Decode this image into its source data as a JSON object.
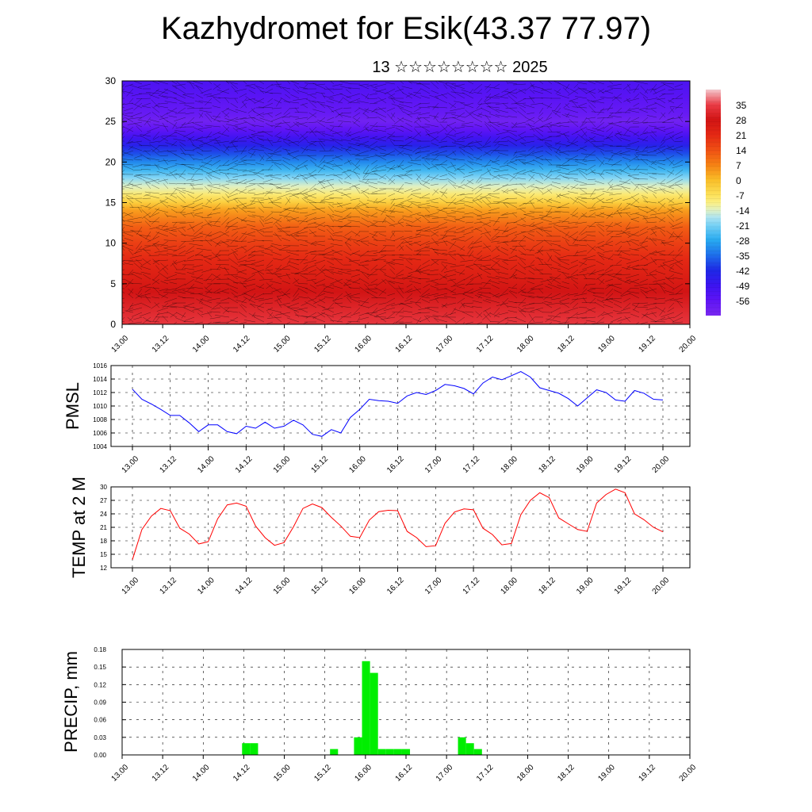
{
  "title": "Kazhydromet for Esik(43.37 77.97)",
  "subtitle": "13 ☆☆☆☆☆☆☆☆ 2025",
  "x_ticks": [
    "13.00",
    "13.12",
    "14.00",
    "14.12",
    "15.00",
    "15.12",
    "16.00",
    "16.12",
    "17.00",
    "17.12",
    "18.00",
    "18.12",
    "19.00",
    "19.12",
    "20.00"
  ],
  "colors": {
    "pmsl_line": "#0000ff",
    "temp_line": "#ff0000",
    "precip_bar": "#00ee00",
    "vector": "#000000"
  },
  "chart_data": [
    {
      "id": "cross-section",
      "type": "heatmap",
      "ylim": [
        0,
        30
      ],
      "y_ticks": [
        0,
        5,
        10,
        15,
        20,
        25,
        30
      ],
      "colorbar_labels": [
        "35",
        "28",
        "21",
        "14",
        "7",
        "0",
        "-7",
        "-14",
        "-21",
        "-28",
        "-35",
        "-42",
        "-49",
        "-56"
      ],
      "colorbar_range": [
        -63,
        42
      ],
      "profile_height": [
        0,
        2,
        4,
        6,
        8,
        10,
        12,
        14,
        15,
        16,
        17,
        18,
        19,
        20,
        21,
        22,
        23,
        24,
        25,
        26,
        28,
        30
      ],
      "profile_value": [
        34,
        31,
        28,
        24,
        21,
        17,
        12,
        4,
        -3,
        -9,
        -14,
        -20,
        -26,
        -32,
        -38,
        -44,
        -50,
        -56,
        -61,
        -58,
        -55,
        -52
      ],
      "vectors": "wind barbs overlaid"
    },
    {
      "id": "pmsl",
      "type": "line",
      "ylabel": "PMSL",
      "ylim": [
        1004,
        1016
      ],
      "y_ticks": [
        1004,
        1006,
        1008,
        1010,
        1012,
        1014,
        1016
      ],
      "series": [
        {
          "values": [
            1012.5,
            1011.0,
            1010.3,
            1009.5,
            1008.6,
            1008.6,
            1007.5,
            1006.2,
            1007.2,
            1007.2,
            1006.2,
            1005.9,
            1007.0,
            1006.7,
            1007.6,
            1006.7,
            1007.0,
            1007.9,
            1007.2,
            1005.8,
            1005.5,
            1006.5,
            1006.0,
            1008.3,
            1009.5,
            1011.0,
            1010.8,
            1010.7,
            1010.4,
            1011.5,
            1012.0,
            1011.7,
            1012.3,
            1013.2,
            1013.0,
            1012.6,
            1011.8,
            1013.4,
            1014.3,
            1013.9,
            1014.5,
            1015.1,
            1014.3,
            1012.7,
            1012.3,
            1011.9,
            1011.1,
            1010.0,
            1011.2,
            1012.4,
            1012.0,
            1010.9,
            1010.7,
            1012.3,
            1011.9,
            1011.0,
            1010.9
          ]
        }
      ]
    },
    {
      "id": "temp",
      "type": "line",
      "ylabel": "TEMP at 2 M",
      "ylim": [
        12,
        30
      ],
      "y_ticks": [
        12,
        15,
        18,
        21,
        24,
        27,
        30
      ],
      "series": [
        {
          "values": [
            13.8,
            20.5,
            23.5,
            25.2,
            24.7,
            20.8,
            19.5,
            17.3,
            17.8,
            22.9,
            26.0,
            26.4,
            25.7,
            21.3,
            18.7,
            17.0,
            17.6,
            21.1,
            25.2,
            26.2,
            25.4,
            23.2,
            21.3,
            19.0,
            18.7,
            22.6,
            24.5,
            24.8,
            24.7,
            20.1,
            18.7,
            16.7,
            16.9,
            21.9,
            24.4,
            25.1,
            24.9,
            20.8,
            19.4,
            17.1,
            17.4,
            23.8,
            27.0,
            28.7,
            27.6,
            23.1,
            21.8,
            20.5,
            20.1,
            26.4,
            28.3,
            29.5,
            28.7,
            24.0,
            22.7,
            21.0,
            20.0
          ]
        }
      ]
    },
    {
      "id": "precip",
      "type": "bar",
      "ylabel": "PRECIP, mm",
      "ylim": [
        0,
        0.18
      ],
      "y_ticks_labels": [
        "0.00",
        "0.03",
        "0.06",
        "0.09",
        "0.12",
        "0.15",
        "0.18"
      ],
      "y_ticks": [
        0,
        0.03,
        0.06,
        0.09,
        0.12,
        0.15,
        0.18
      ],
      "values": [
        0,
        0,
        0,
        0,
        0,
        0,
        0,
        0,
        0,
        0,
        0,
        0,
        0,
        0,
        0,
        0.02,
        0.02,
        0,
        0,
        0,
        0,
        0,
        0,
        0,
        0,
        0,
        0.01,
        0,
        0,
        0.03,
        0.16,
        0.14,
        0.01,
        0.01,
        0.01,
        0.01,
        0,
        0,
        0,
        0,
        0,
        0,
        0.03,
        0.02,
        0.01,
        0,
        0,
        0,
        0,
        0,
        0,
        0,
        0,
        0,
        0,
        0,
        0,
        0,
        0,
        0,
        0,
        0,
        0,
        0,
        0,
        0,
        0,
        0,
        0,
        0,
        0
      ]
    }
  ]
}
